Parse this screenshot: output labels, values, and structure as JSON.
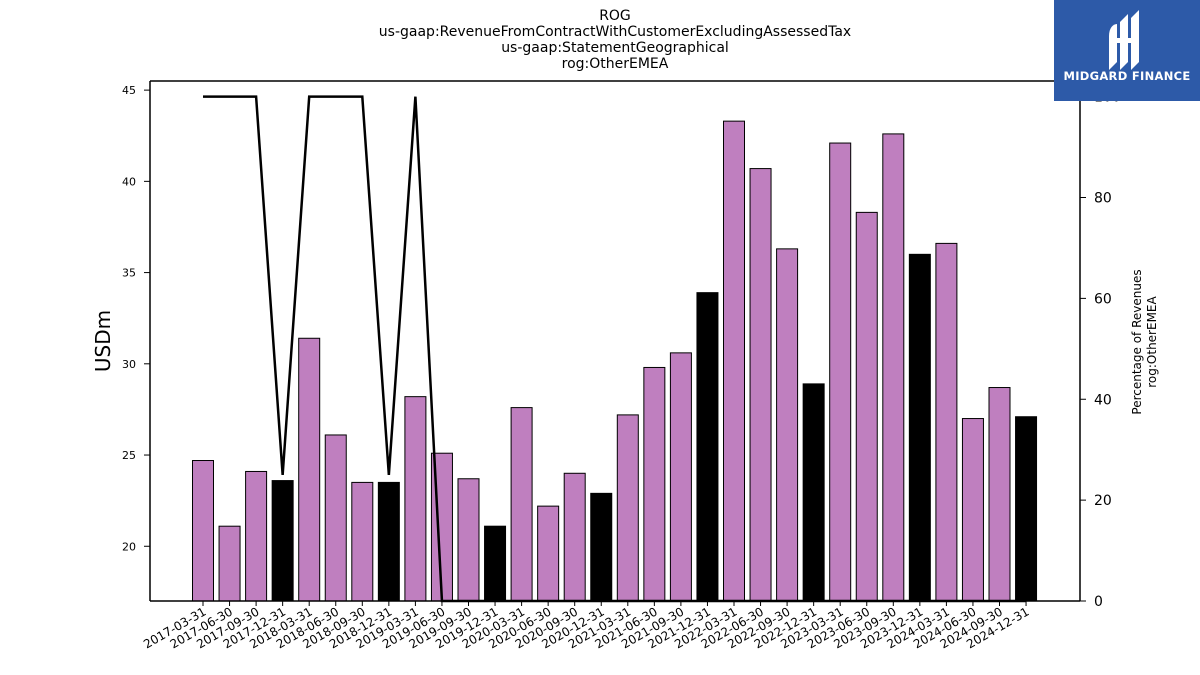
{
  "header": {
    "title_lines": [
      "ROG",
      "us-gaap:RevenueFromContractWithCustomerExcludingAssessedTax",
      "us-gaap:StatementGeographical",
      "rog:OtherEMEA"
    ]
  },
  "logo": {
    "text": "MIDGARD FINANCE",
    "background": "#2d5aa8"
  },
  "chart_data": {
    "type": "bar",
    "ylabel": "USDm",
    "y2label_lines": [
      "Percentage of Revenues",
      "rog:OtherEMEA"
    ],
    "ylim": [
      17,
      45.5
    ],
    "y2lim": [
      0,
      103.1
    ],
    "yticks": [
      20,
      25,
      30,
      35,
      40,
      45
    ],
    "y2ticks": [
      0,
      20,
      40,
      60,
      80,
      100
    ],
    "colors": {
      "bar": "#bf7fbf",
      "q4_bar": "#000000",
      "line": "#000000"
    },
    "categories": [
      "2017-03-31",
      "2017-06-30",
      "2017-09-30",
      "2017-12-31",
      "2018-03-31",
      "2018-06-30",
      "2018-09-30",
      "2018-12-31",
      "2019-03-31",
      "2019-06-30",
      "2019-09-30",
      "2019-12-31",
      "2020-03-31",
      "2020-06-30",
      "2020-09-30",
      "2020-12-31",
      "2021-03-31",
      "2021-06-30",
      "2021-09-30",
      "2021-12-31",
      "2022-03-31",
      "2022-06-30",
      "2022-09-30",
      "2022-12-31",
      "2023-03-31",
      "2023-06-30",
      "2023-09-30",
      "2023-12-31",
      "2024-03-31",
      "2024-06-30",
      "2024-09-30",
      "2024-12-31"
    ],
    "values": [
      24.7,
      21.1,
      24.1,
      23.6,
      31.4,
      26.1,
      23.5,
      23.5,
      28.2,
      25.1,
      23.7,
      21.1,
      27.6,
      22.2,
      24.0,
      22.9,
      27.2,
      29.8,
      30.6,
      33.9,
      43.3,
      40.7,
      36.3,
      28.9,
      42.1,
      38.3,
      42.6,
      36.0,
      36.6,
      27.0,
      28.7,
      27.1
    ],
    "highlight_q4": [
      false,
      false,
      false,
      true,
      false,
      false,
      false,
      true,
      false,
      false,
      false,
      true,
      false,
      false,
      false,
      true,
      false,
      false,
      false,
      true,
      false,
      false,
      false,
      true,
      false,
      false,
      false,
      true,
      false,
      false,
      false,
      true
    ],
    "line_series": {
      "values": [
        100,
        100,
        100,
        25,
        100,
        100,
        100,
        25,
        100,
        0,
        0,
        0,
        0,
        0,
        0,
        0,
        0,
        0,
        0,
        0,
        0,
        0,
        0,
        0,
        0,
        0,
        0,
        0,
        0,
        0,
        0,
        0
      ]
    },
    "grid": false,
    "legend": "none"
  }
}
